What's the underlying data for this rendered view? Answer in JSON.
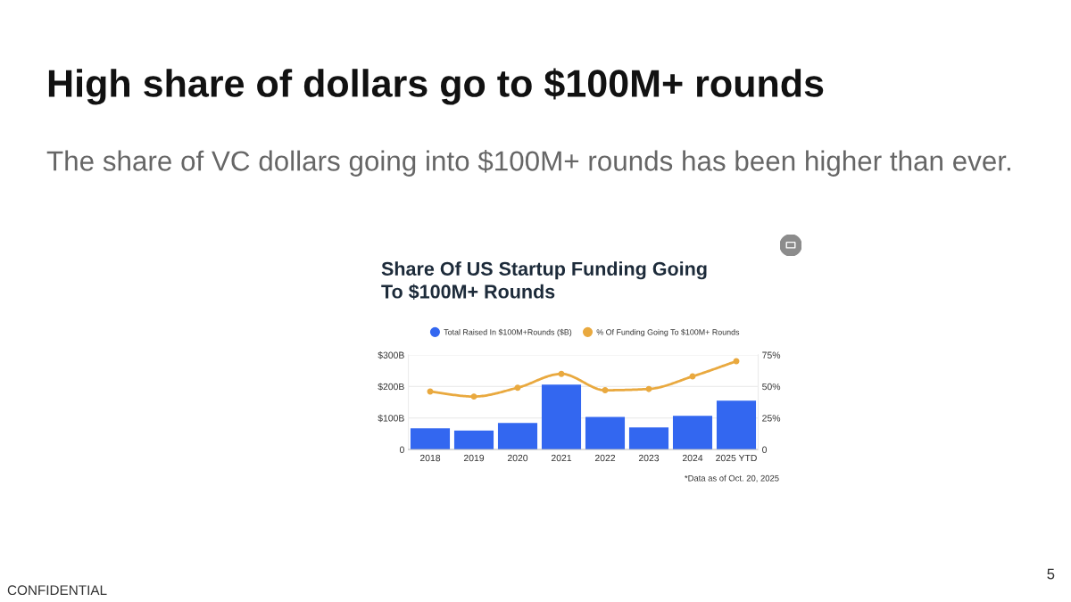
{
  "chart_data": {
    "type": "bar",
    "title": "High share of dollars go to $100M+ rounds",
    "subtitle": "The share of VC dollars going into $100M+ rounds has been higher than ever.",
    "categories": [
      "2018",
      "2019",
      "2020",
      "2021",
      "2022",
      "2023",
      "2024",
      "2025 YTD"
    ],
    "series": [
      {
        "name": "Total Raised In $100M+Rounds ($B)",
        "color": "#3367f0",
        "values": [
          67,
          60,
          84,
          206,
          103,
          70,
          107,
          155
        ]
      },
      {
        "name": "% Of Funding Going To $100M+ Rounds",
        "type": "line",
        "axis": "y2",
        "color": "#e9a93f",
        "values": [
          46,
          42,
          49,
          60,
          47,
          48,
          58,
          70
        ]
      }
    ],
    "ylim": [
      0,
      300
    ],
    "yticks": [
      {
        "value": 0,
        "label": "0"
      },
      {
        "value": 100,
        "label": "$100B"
      },
      {
        "value": 200,
        "label": "$200B"
      },
      {
        "value": 300,
        "label": "$300B"
      }
    ],
    "y2lim": [
      0,
      75
    ],
    "y2ticks": [
      {
        "value": 0,
        "label": "0"
      },
      {
        "value": 25,
        "label": "25%"
      },
      {
        "value": 50,
        "label": "50%"
      },
      {
        "value": 75,
        "label": "75%"
      }
    ],
    "grid": "y",
    "legend": "top",
    "marker": "circle",
    "line_style": "solid",
    "annotations": [
      "Share Of US Startup Funding Going\nTo $100M+ Rounds",
      "*Data as of Oct. 20, 2025",
      "CONFIDENTIAL",
      "5"
    ]
  }
}
